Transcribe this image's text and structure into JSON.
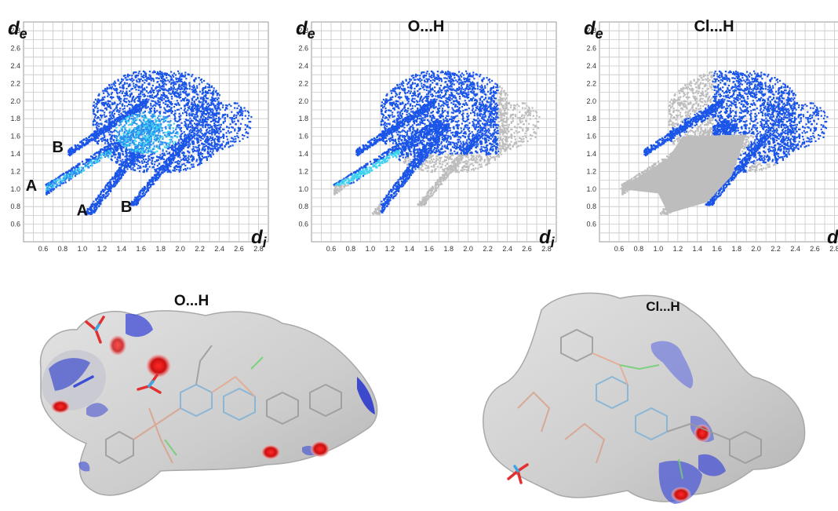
{
  "chart_data": [
    {
      "type": "scatter",
      "title": "",
      "xlabel": "d_i",
      "ylabel": "d_e",
      "xlim": [
        0.4,
        2.9
      ],
      "ylim": [
        0.4,
        2.9
      ],
      "grid": true,
      "xticks": [
        "0.6",
        "0.8",
        "1.0",
        "1.2",
        "1.4",
        "1.6",
        "1.8",
        "2.0",
        "2.2",
        "2.4",
        "2.6",
        "2.8"
      ],
      "yticks": [
        "0.6",
        "0.8",
        "1.0",
        "1.2",
        "1.4",
        "1.6",
        "1.8",
        "2.0",
        "2.2",
        "2.4",
        "2.6",
        "2.8"
      ],
      "annotations": [
        {
          "text": "A",
          "x": 0.48,
          "y": 0.98
        },
        {
          "text": "B",
          "x": 0.75,
          "y": 1.42
        },
        {
          "text": "A",
          "x": 1.0,
          "y": 0.7
        },
        {
          "text": "B",
          "x": 1.45,
          "y": 0.74
        }
      ],
      "highlight": "all"
    },
    {
      "type": "scatter",
      "title": "O...H",
      "xlabel": "d_i",
      "ylabel": "d_e",
      "xlim": [
        0.4,
        2.9
      ],
      "ylim": [
        0.4,
        2.9
      ],
      "grid": true,
      "xticks": [
        "0.6",
        "0.8",
        "1.0",
        "1.2",
        "1.4",
        "1.6",
        "1.8",
        "2.0",
        "2.2",
        "2.4",
        "2.6",
        "2.8"
      ],
      "yticks": [
        "0.6",
        "0.8",
        "1.0",
        "1.2",
        "1.4",
        "1.6",
        "1.8",
        "2.0",
        "2.2",
        "2.4",
        "2.6",
        "2.8"
      ],
      "highlight": "O...H"
    },
    {
      "type": "scatter",
      "title": "Cl...H",
      "xlabel": "d_i",
      "ylabel": "d_e",
      "xlim": [
        0.4,
        2.9
      ],
      "ylim": [
        0.4,
        2.9
      ],
      "grid": true,
      "xticks": [
        "0.6",
        "0.8",
        "1.0",
        "1.2",
        "1.4",
        "1.6",
        "1.8",
        "2.0",
        "2.2",
        "2.4",
        "2.6",
        "2.8"
      ],
      "yticks": [
        "0.6",
        "0.8",
        "1.0",
        "1.2",
        "1.4",
        "1.6",
        "1.8",
        "2.0",
        "2.2",
        "2.4",
        "2.6",
        "2.8"
      ],
      "highlight": "Cl...H"
    }
  ],
  "axis_label_e": "e",
  "axis_label_i": "i",
  "axis_label_d": "d",
  "surfaces": [
    {
      "title": "O...H"
    },
    {
      "title": "Cl...H"
    }
  ],
  "colors": {
    "grid": "#c8c8c8",
    "frame": "#9a9a9a",
    "points_blue": "#1a55e8",
    "points_cyan": "#3fd2ee",
    "points_grey": "#bdbdbd",
    "surface": "#d2d2d2",
    "surface_edge": "#a6a6a6",
    "contact_red": "#d41b1b",
    "contact_blue": "#4a56d6"
  }
}
